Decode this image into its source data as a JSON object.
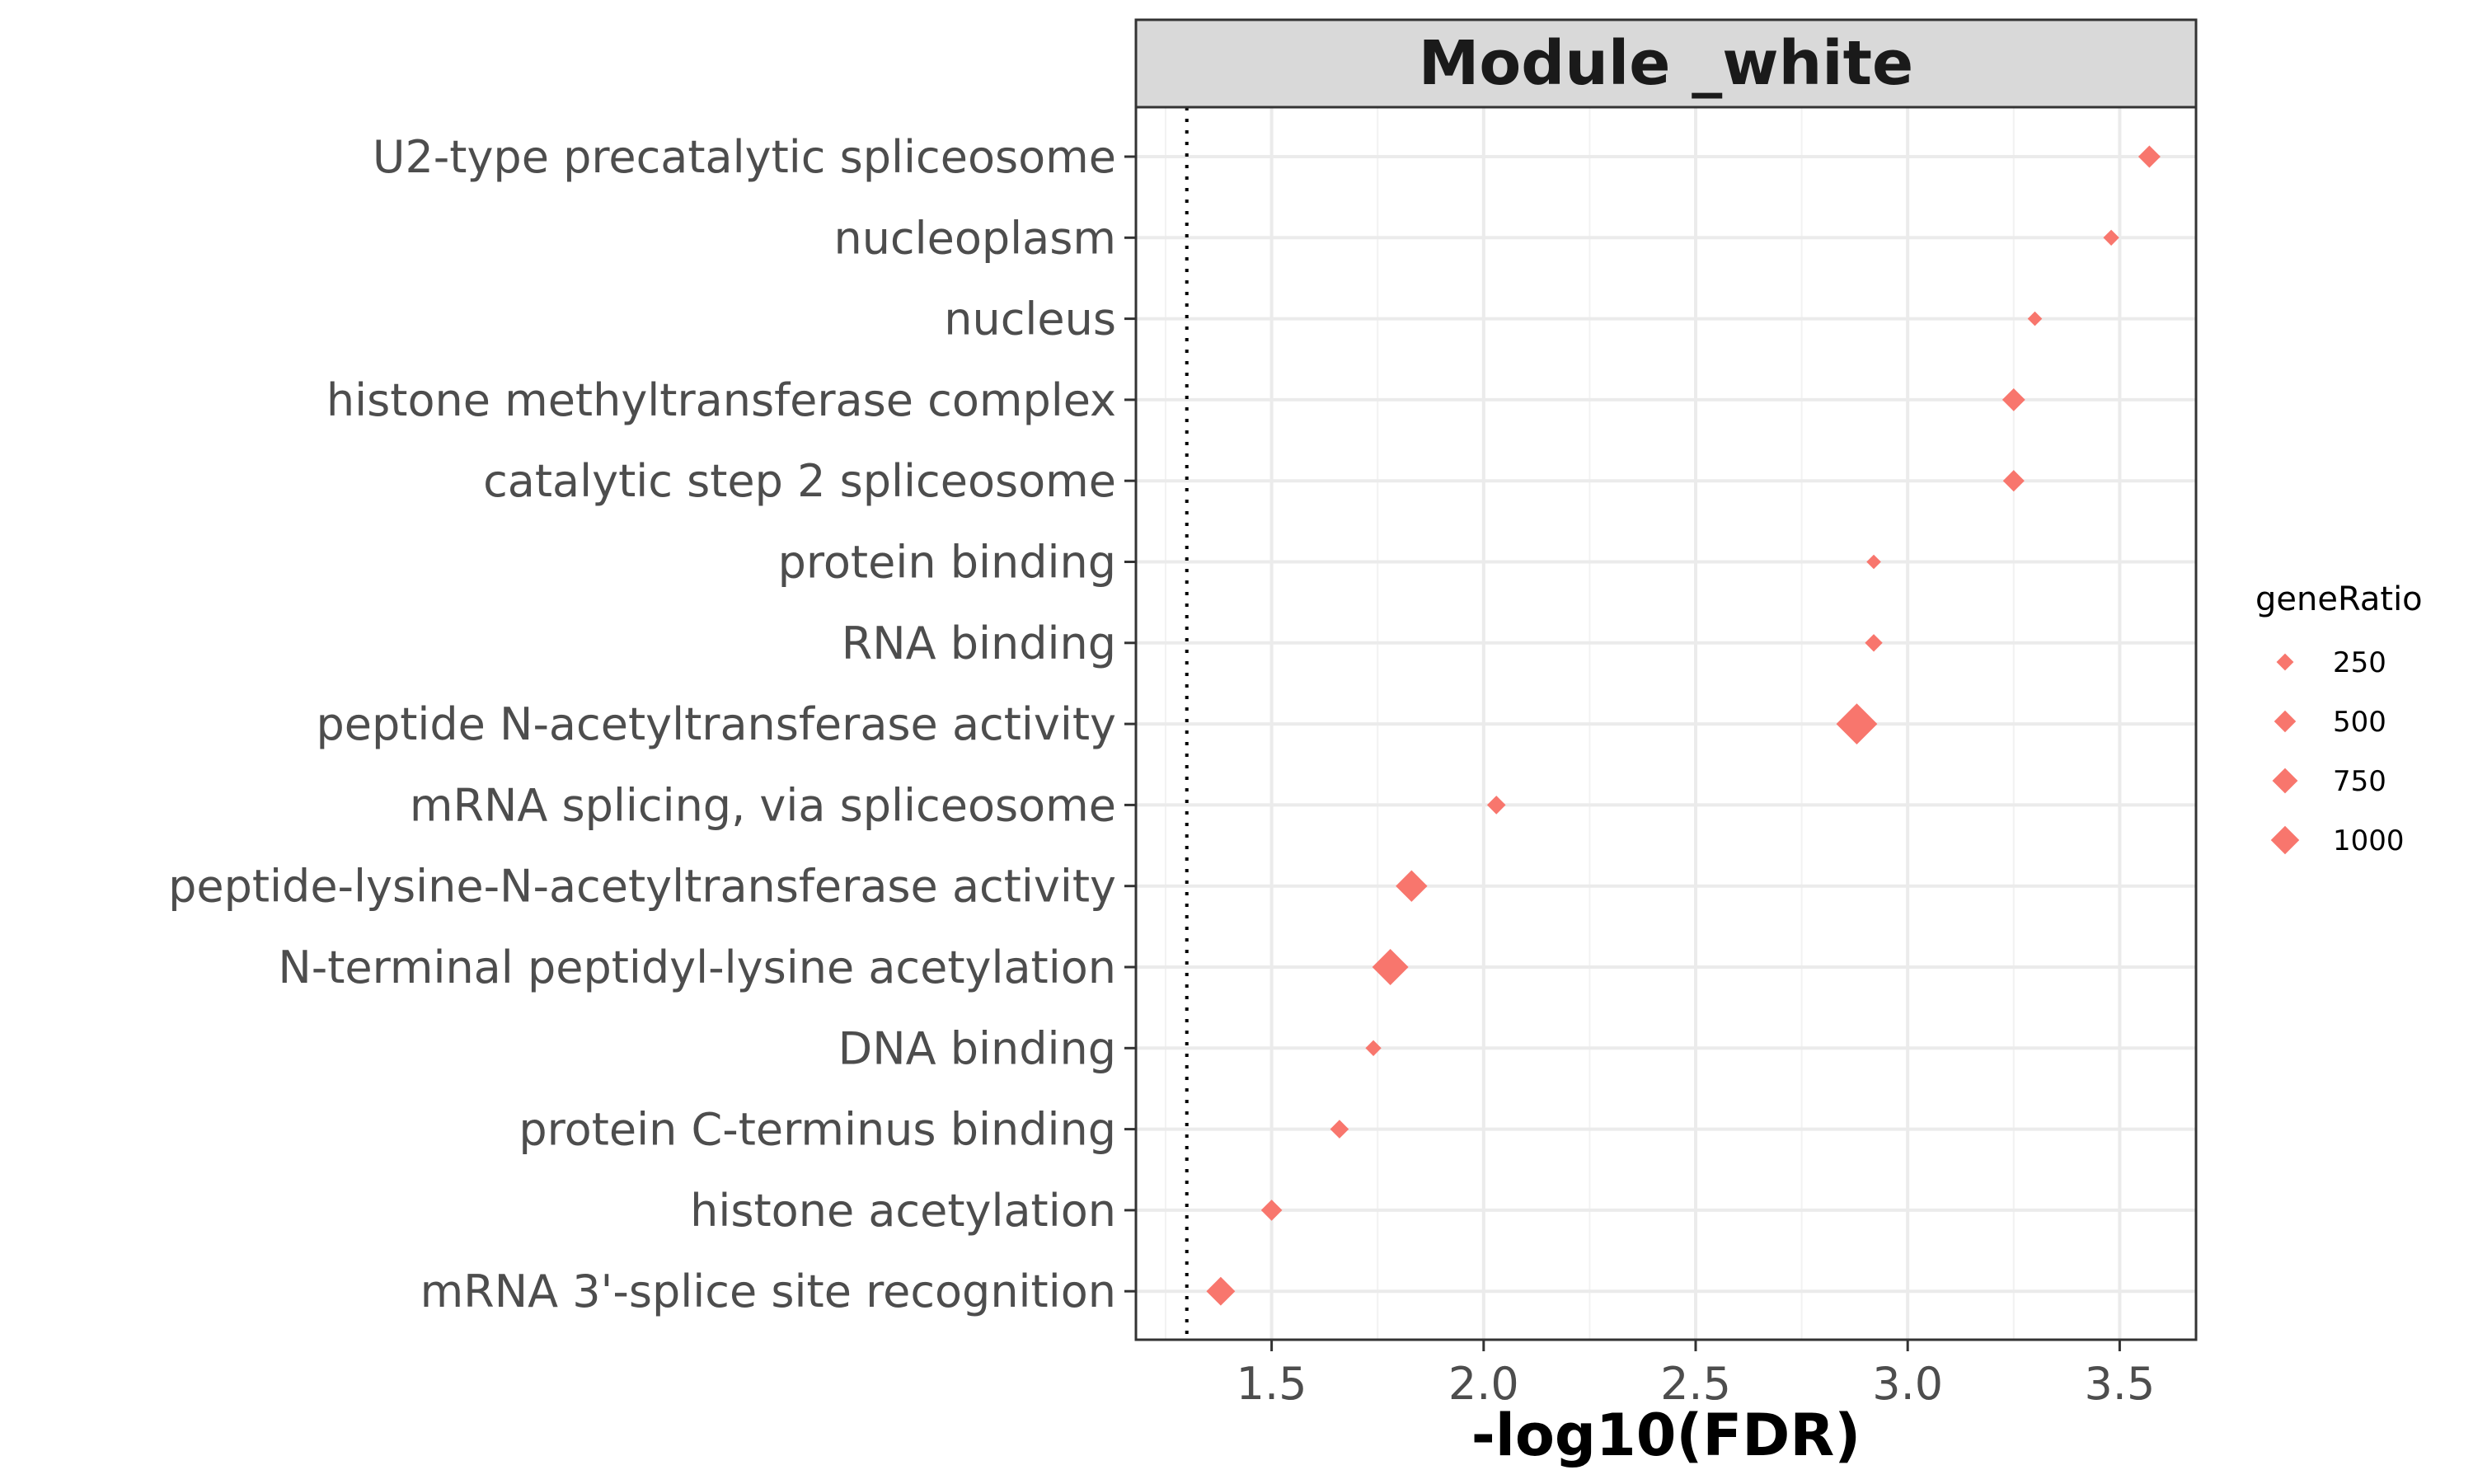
{
  "chart_data": {
    "type": "scatter",
    "title": "Module _white",
    "xlabel": "-log10(FDR)",
    "ylabel": "",
    "xlim": [
      1.18,
      3.68
    ],
    "xticks": [
      1.5,
      2.0,
      2.5,
      3.0,
      3.5
    ],
    "xtick_labels": [
      "1.5",
      "2.0",
      "2.5",
      "3.0",
      "3.5"
    ],
    "reference_line": {
      "x": 1.3,
      "style": "dotted"
    },
    "grid": true,
    "marker": "diamond",
    "color": "#F8766D",
    "categories": [
      "U2-type precatalytic spliceosome",
      "nucleoplasm",
      "nucleus",
      "histone methyltransferase complex",
      "catalytic step 2 spliceosome",
      "protein binding",
      "RNA binding",
      "peptide N-acetyltransferase activity",
      "mRNA splicing, via spliceosome",
      "peptide-lysine-N-acetyltransferase activity",
      "N-terminal peptidyl-lysine acetylation",
      "DNA binding",
      "protein C-terminus binding",
      "histone acetylation",
      "mRNA 3'-splice site recognition"
    ],
    "points": [
      {
        "category": "U2-type precatalytic spliceosome",
        "x": 3.57,
        "size": 200
      },
      {
        "category": "nucleoplasm",
        "x": 3.48,
        "size": 60
      },
      {
        "category": "nucleus",
        "x": 3.3,
        "size": 40
      },
      {
        "category": "histone methyltransferase complex",
        "x": 3.25,
        "size": 220
      },
      {
        "category": "catalytic step 2 spliceosome",
        "x": 3.25,
        "size": 180
      },
      {
        "category": "protein binding",
        "x": 2.92,
        "size": 40
      },
      {
        "category": "RNA binding",
        "x": 2.92,
        "size": 90
      },
      {
        "category": "peptide N-acetyltransferase activity",
        "x": 2.88,
        "size": 1100
      },
      {
        "category": "mRNA splicing, via spliceosome",
        "x": 2.03,
        "size": 110
      },
      {
        "category": "peptide-lysine-N-acetyltransferase activity",
        "x": 1.83,
        "size": 560
      },
      {
        "category": "N-terminal peptidyl-lysine acetylation",
        "x": 1.78,
        "size": 800
      },
      {
        "category": "DNA binding",
        "x": 1.74,
        "size": 60
      },
      {
        "category": "protein C-terminus binding",
        "x": 1.66,
        "size": 110
      },
      {
        "category": "histone acetylation",
        "x": 1.5,
        "size": 170
      },
      {
        "category": "mRNA 3'-splice site recognition",
        "x": 1.38,
        "size": 430
      }
    ],
    "legend": {
      "title": "geneRatio",
      "position": "right",
      "entries": [
        {
          "label": "250",
          "size": 250
        },
        {
          "label": "500",
          "size": 500
        },
        {
          "label": "750",
          "size": 750
        },
        {
          "label": "1000",
          "size": 1000
        }
      ]
    }
  }
}
